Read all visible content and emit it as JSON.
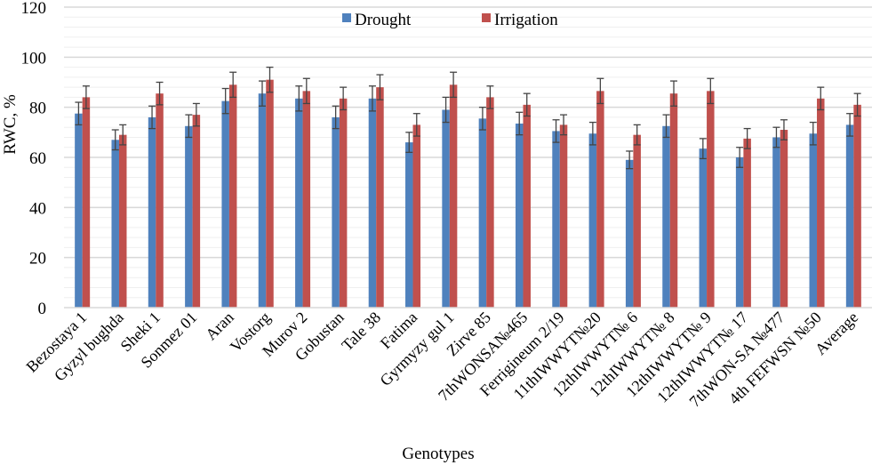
{
  "chart_data": {
    "type": "bar",
    "title": "",
    "xlabel": "Genotypes",
    "ylabel": "RWC, %",
    "ylim": [
      0,
      120
    ],
    "yticks": [
      0,
      20,
      40,
      60,
      80,
      100,
      120
    ],
    "yticks_labels": [
      "0",
      "20",
      "40",
      "60",
      "80",
      "100",
      "120"
    ],
    "grid": true,
    "legend_position": "top-center",
    "categories": [
      "Bezostaya 1",
      "Gyzyl bughda",
      "Sheki 1",
      "Sonmez 01",
      "Aran",
      "Vostorg",
      "Murov 2",
      "Gobustan",
      "Tale 38",
      "Fatima",
      "Gyrmyzy gul 1",
      "Zirve 85",
      "7thWONSA№465",
      "Ferrigineum 2/19",
      "11thIWWYT№20",
      "12thIWWYT№ 6",
      "12thIWWYT№ 8",
      "12thIWWYT№ 9",
      "12thIWWYT№ 17",
      "7thWON-SA  №477",
      "4th FEFWSN  №50",
      "Average"
    ],
    "series": [
      {
        "name": "Drought",
        "color": "#4f81bd",
        "values": [
          77.5,
          67,
          76,
          72.5,
          82.5,
          85.5,
          83.5,
          76,
          83.5,
          66,
          79,
          75.5,
          73.5,
          70.5,
          69.5,
          59,
          72.5,
          63.5,
          60,
          68,
          69.5,
          73
        ],
        "errors": [
          4.5,
          4,
          4.5,
          4.5,
          5,
          5,
          5,
          4.5,
          5,
          4,
          5,
          4.5,
          4.5,
          4.5,
          4.5,
          3.5,
          4.5,
          4,
          4,
          4,
          4.5,
          4.5
        ]
      },
      {
        "name": "Irrigation",
        "color": "#c0504d",
        "values": [
          84,
          69,
          85.5,
          77,
          89,
          91,
          86.5,
          83.5,
          88,
          73,
          89,
          84,
          81,
          73,
          86.5,
          69,
          85.5,
          86.5,
          67.5,
          71,
          83.5,
          81
        ],
        "errors": [
          4.5,
          4,
          4.5,
          4.5,
          5,
          5,
          5,
          4.5,
          5,
          4.5,
          5,
          4.5,
          4.5,
          4,
          5,
          4,
          5,
          5,
          4,
          4,
          4.5,
          4.5
        ]
      }
    ]
  }
}
